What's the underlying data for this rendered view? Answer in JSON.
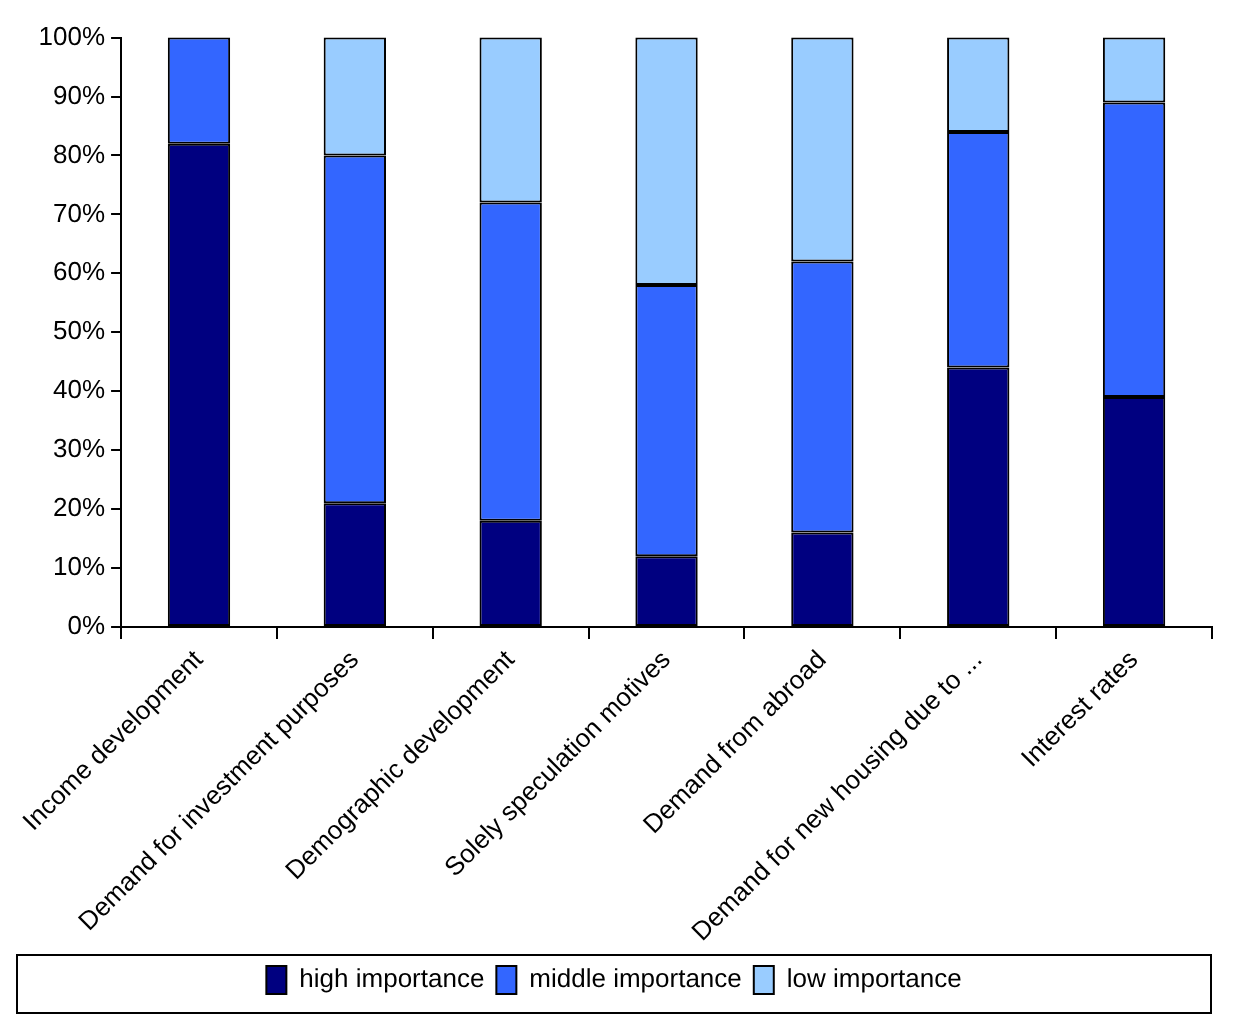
{
  "chart_data": {
    "type": "bar",
    "stacked": true,
    "categories": [
      "Income development",
      "Demand for investment purposes",
      "Demographic development",
      "Solely speculation motives",
      "Demand from abroad",
      "Demand for new housing due to ...",
      "Interest rates"
    ],
    "series": [
      {
        "name": "high importance",
        "color": "#000080",
        "values": [
          82,
          21,
          18,
          12,
          16,
          44,
          39
        ]
      },
      {
        "name": "middle importance",
        "color": "#3366ff",
        "values": [
          18,
          59,
          54,
          46,
          46,
          40,
          50
        ]
      },
      {
        "name": "low importance",
        "color": "#99ccff",
        "values": [
          0,
          20,
          28,
          42,
          38,
          16,
          11
        ]
      }
    ],
    "ylim": [
      0,
      100
    ],
    "yticks": [
      {
        "value": 0,
        "label": "0%"
      },
      {
        "value": 10,
        "label": "10%"
      },
      {
        "value": 20,
        "label": "20%"
      },
      {
        "value": 30,
        "label": "30%"
      },
      {
        "value": 40,
        "label": "40%"
      },
      {
        "value": 50,
        "label": "50%"
      },
      {
        "value": 60,
        "label": "60%"
      },
      {
        "value": 70,
        "label": "70%"
      },
      {
        "value": 80,
        "label": "80%"
      },
      {
        "value": 90,
        "label": "90%"
      },
      {
        "value": 100,
        "label": "100%"
      }
    ],
    "grid": false,
    "legend": "bottom"
  }
}
